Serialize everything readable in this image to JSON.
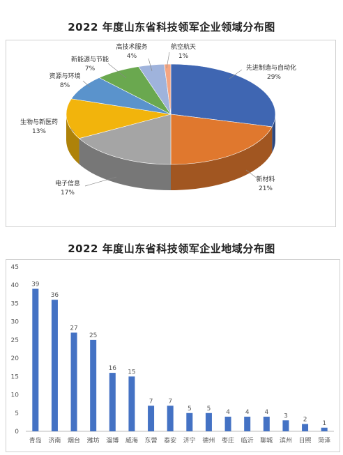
{
  "charts": {
    "pie_title": "2022 年度山东省科技领军企业领域分布图",
    "bar_title": "2022 年度山东省科技领军企业地域分布图"
  },
  "chart_data": [
    {
      "type": "pie",
      "title": "2022 年度山东省科技领军企业领域分布图",
      "style": "3d",
      "slices": [
        {
          "label": "先进制造与自动化",
          "value": 29,
          "display": "29%",
          "color": "#3f66b2"
        },
        {
          "label": "新材料",
          "value": 21,
          "display": "21%",
          "color": "#e0782e"
        },
        {
          "label": "电子信息",
          "value": 17,
          "display": "17%",
          "color": "#a5a5a5"
        },
        {
          "label": "生物与新医药",
          "value": 13,
          "display": "13%",
          "color": "#f2b40c"
        },
        {
          "label": "资源与环境",
          "value": 8,
          "display": "8%",
          "color": "#5a93cc"
        },
        {
          "label": "新能源与节能",
          "value": 7,
          "display": "7%",
          "color": "#6aa84f"
        },
        {
          "label": "高技术服务",
          "value": 4,
          "display": "4%",
          "color": "#9fb3dc"
        },
        {
          "label": "航空航天",
          "value": 1,
          "display": "1%",
          "color": "#f4a582"
        }
      ]
    },
    {
      "type": "bar",
      "title": "2022 年度山东省科技领军企业地域分布图",
      "categories": [
        "青岛",
        "济南",
        "烟台",
        "潍坊",
        "淄博",
        "威海",
        "东营",
        "泰安",
        "济宁",
        "德州",
        "枣庄",
        "临沂",
        "聊城",
        "滨州",
        "日照",
        "菏泽"
      ],
      "values": [
        39,
        36,
        27,
        25,
        16,
        15,
        7,
        7,
        5,
        5,
        4,
        4,
        4,
        3,
        2,
        1
      ],
      "ylim": [
        0,
        45
      ],
      "yticks": [
        0,
        5,
        10,
        15,
        20,
        25,
        30,
        35,
        40,
        45
      ],
      "grid": false,
      "color": "#4472c4"
    }
  ]
}
